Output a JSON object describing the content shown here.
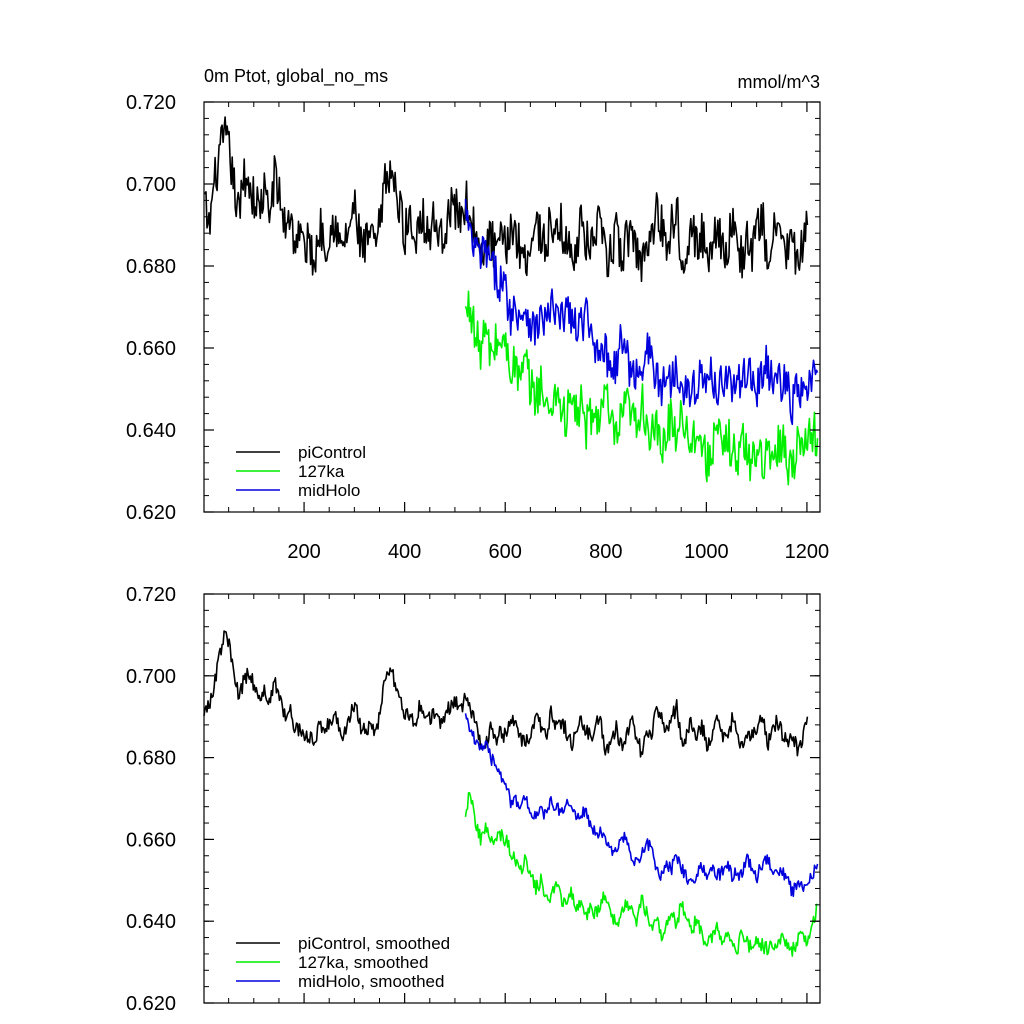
{
  "figure": {
    "title_left": "0m Ptot, global_no_ms",
    "title_right": "mmol/m^3"
  },
  "colors": {
    "piControl": "#000000",
    "127ka": "#00ee00",
    "midHolo": "#0000dd"
  },
  "chart_data": [
    {
      "type": "line",
      "title": "0m Ptot, global_no_ms",
      "unit_label": "mmol/m^3",
      "xlabel": "",
      "ylabel": "",
      "xlim": [
        1,
        1226
      ],
      "ylim": [
        0.62,
        0.72
      ],
      "x_ticks": [
        200,
        400,
        600,
        800,
        1000,
        1200
      ],
      "y_ticks": [
        0.62,
        0.64,
        0.66,
        0.68,
        0.7,
        0.72
      ],
      "y_tick_labels": [
        "0.620",
        "0.640",
        "0.660",
        "0.680",
        "0.700",
        "0.720"
      ],
      "legend_position": "bottom-left",
      "series": [
        {
          "name": "piControl",
          "x_start": 1,
          "x_step": 10,
          "values": [
            0.696,
            0.689,
            0.7,
            0.706,
            0.712,
            0.708,
            0.699,
            0.692,
            0.703,
            0.7,
            0.696,
            0.694,
            0.698,
            0.692,
            0.702,
            0.697,
            0.69,
            0.693,
            0.686,
            0.688,
            0.684,
            0.686,
            0.68,
            0.69,
            0.686,
            0.688,
            0.692,
            0.684,
            0.686,
            0.69,
            0.694,
            0.686,
            0.684,
            0.688,
            0.684,
            0.69,
            0.7,
            0.704,
            0.698,
            0.694,
            0.688,
            0.692,
            0.686,
            0.694,
            0.69,
            0.688,
            0.692,
            0.686,
            0.69,
            0.694,
            0.694,
            0.692,
            0.696,
            0.692,
            0.688,
            0.68,
            0.684,
            0.688,
            0.682,
            0.686,
            0.684,
            0.69,
            0.688,
            0.684,
            0.682,
            0.686,
            0.69,
            0.688,
            0.684,
            0.692,
            0.686,
            0.69,
            0.686,
            0.682,
            0.686,
            0.69,
            0.686,
            0.684,
            0.69,
            0.688,
            0.68,
            0.684,
            0.688,
            0.682,
            0.686,
            0.69,
            0.684,
            0.68,
            0.688,
            0.686,
            0.694,
            0.69,
            0.686,
            0.69,
            0.694,
            0.682,
            0.686,
            0.69,
            0.684,
            0.688,
            0.682,
            0.686,
            0.69,
            0.686,
            0.684,
            0.69,
            0.686,
            0.682,
            0.686,
            0.684,
            0.688,
            0.692,
            0.682,
            0.686,
            0.69,
            0.686,
            0.684,
            0.686,
            0.68,
            0.684,
            0.69
          ],
          "noise": 0.0055
        },
        {
          "name": "127ka",
          "x_start": 521,
          "x_step": 10,
          "values": [
            0.668,
            0.671,
            0.662,
            0.66,
            0.664,
            0.658,
            0.661,
            0.662,
            0.66,
            0.656,
            0.655,
            0.652,
            0.656,
            0.65,
            0.648,
            0.652,
            0.644,
            0.646,
            0.65,
            0.646,
            0.642,
            0.648,
            0.644,
            0.646,
            0.64,
            0.644,
            0.642,
            0.646,
            0.648,
            0.64,
            0.638,
            0.642,
            0.646,
            0.644,
            0.64,
            0.648,
            0.642,
            0.638,
            0.64,
            0.634,
            0.64,
            0.644,
            0.638,
            0.646,
            0.64,
            0.636,
            0.642,
            0.636,
            0.632,
            0.636,
            0.64,
            0.634,
            0.638,
            0.636,
            0.632,
            0.638,
            0.634,
            0.632,
            0.636,
            0.634,
            0.632,
            0.634,
            0.636,
            0.638,
            0.632,
            0.632,
            0.636,
            0.64,
            0.636,
            0.64,
            0.638
          ],
          "noise": 0.0055
        },
        {
          "name": "midHolo",
          "x_start": 521,
          "x_step": 10,
          "values": [
            0.694,
            0.686,
            0.684,
            0.682,
            0.684,
            0.68,
            0.678,
            0.676,
            0.674,
            0.668,
            0.67,
            0.668,
            0.67,
            0.666,
            0.664,
            0.668,
            0.666,
            0.67,
            0.668,
            0.666,
            0.67,
            0.668,
            0.664,
            0.666,
            0.668,
            0.662,
            0.66,
            0.662,
            0.658,
            0.656,
            0.656,
            0.662,
            0.66,
            0.652,
            0.654,
            0.656,
            0.66,
            0.658,
            0.652,
            0.65,
            0.654,
            0.652,
            0.656,
            0.652,
            0.65,
            0.648,
            0.652,
            0.654,
            0.65,
            0.654,
            0.65,
            0.652,
            0.654,
            0.65,
            0.652,
            0.65,
            0.656,
            0.652,
            0.65,
            0.654,
            0.656,
            0.652,
            0.652,
            0.652,
            0.65,
            0.646,
            0.65,
            0.648,
            0.65,
            0.652,
            0.654
          ],
          "noise": 0.005
        }
      ]
    },
    {
      "type": "line",
      "title": "",
      "xlabel": "",
      "ylabel": "",
      "xlim": [
        1,
        1226
      ],
      "ylim": [
        0.62,
        0.72
      ],
      "x_ticks": [
        200,
        400,
        600,
        800,
        1000,
        1200
      ],
      "y_ticks": [
        0.62,
        0.64,
        0.66,
        0.68,
        0.7,
        0.72
      ],
      "y_tick_labels": [
        "0.620",
        "0.640",
        "0.660",
        "0.680",
        "0.700",
        "0.720"
      ],
      "legend_position": "bottom-left",
      "series": [
        {
          "name": "piControl, smoothed",
          "x_start": 1,
          "x_step": 10,
          "values": [
            0.692,
            0.692,
            0.698,
            0.704,
            0.71,
            0.708,
            0.7,
            0.694,
            0.7,
            0.7,
            0.698,
            0.694,
            0.696,
            0.694,
            0.698,
            0.696,
            0.69,
            0.692,
            0.688,
            0.687,
            0.685,
            0.685,
            0.683,
            0.688,
            0.688,
            0.688,
            0.692,
            0.686,
            0.686,
            0.69,
            0.693,
            0.688,
            0.686,
            0.688,
            0.686,
            0.69,
            0.7,
            0.702,
            0.698,
            0.694,
            0.69,
            0.691,
            0.688,
            0.693,
            0.691,
            0.689,
            0.691,
            0.688,
            0.69,
            0.693,
            0.694,
            0.692,
            0.695,
            0.692,
            0.69,
            0.682,
            0.684,
            0.687,
            0.684,
            0.686,
            0.685,
            0.689,
            0.688,
            0.685,
            0.683,
            0.686,
            0.689,
            0.688,
            0.685,
            0.691,
            0.687,
            0.689,
            0.687,
            0.683,
            0.686,
            0.689,
            0.687,
            0.685,
            0.689,
            0.688,
            0.681,
            0.683,
            0.687,
            0.683,
            0.686,
            0.689,
            0.685,
            0.681,
            0.687,
            0.686,
            0.693,
            0.69,
            0.686,
            0.689,
            0.693,
            0.683,
            0.686,
            0.689,
            0.685,
            0.688,
            0.683,
            0.686,
            0.689,
            0.686,
            0.685,
            0.689,
            0.686,
            0.683,
            0.686,
            0.685,
            0.688,
            0.691,
            0.683,
            0.686,
            0.689,
            0.686,
            0.684,
            0.686,
            0.682,
            0.684,
            0.69
          ],
          "noise": 0.002
        },
        {
          "name": "127ka, smoothed",
          "x_start": 521,
          "x_step": 10,
          "values": [
            0.667,
            0.672,
            0.664,
            0.66,
            0.663,
            0.659,
            0.66,
            0.661,
            0.66,
            0.657,
            0.655,
            0.653,
            0.655,
            0.651,
            0.648,
            0.65,
            0.645,
            0.646,
            0.649,
            0.646,
            0.643,
            0.647,
            0.644,
            0.645,
            0.641,
            0.643,
            0.642,
            0.645,
            0.646,
            0.641,
            0.639,
            0.642,
            0.645,
            0.643,
            0.64,
            0.646,
            0.642,
            0.639,
            0.64,
            0.636,
            0.64,
            0.643,
            0.639,
            0.645,
            0.64,
            0.637,
            0.641,
            0.637,
            0.634,
            0.636,
            0.639,
            0.635,
            0.637,
            0.636,
            0.633,
            0.637,
            0.635,
            0.633,
            0.635,
            0.634,
            0.633,
            0.634,
            0.635,
            0.637,
            0.633,
            0.633,
            0.635,
            0.638,
            0.635,
            0.639,
            0.644
          ],
          "noise": 0.0018
        },
        {
          "name": "midHolo, smoothed",
          "x_start": 521,
          "x_step": 10,
          "values": [
            0.692,
            0.686,
            0.684,
            0.683,
            0.683,
            0.68,
            0.678,
            0.676,
            0.674,
            0.669,
            0.67,
            0.668,
            0.67,
            0.667,
            0.665,
            0.667,
            0.666,
            0.669,
            0.668,
            0.667,
            0.669,
            0.668,
            0.665,
            0.666,
            0.667,
            0.663,
            0.661,
            0.662,
            0.659,
            0.657,
            0.657,
            0.661,
            0.66,
            0.654,
            0.655,
            0.656,
            0.659,
            0.658,
            0.653,
            0.651,
            0.654,
            0.653,
            0.656,
            0.653,
            0.651,
            0.649,
            0.652,
            0.654,
            0.651,
            0.653,
            0.651,
            0.652,
            0.654,
            0.651,
            0.652,
            0.651,
            0.656,
            0.653,
            0.651,
            0.654,
            0.656,
            0.653,
            0.652,
            0.652,
            0.65,
            0.647,
            0.649,
            0.648,
            0.65,
            0.651,
            0.654
          ],
          "noise": 0.0016
        }
      ]
    }
  ]
}
